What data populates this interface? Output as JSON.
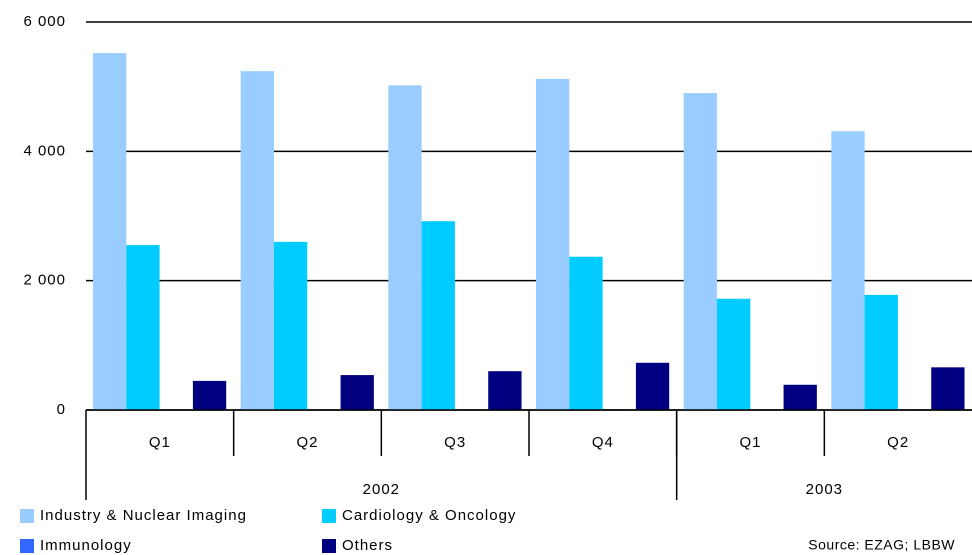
{
  "chart_data": {
    "type": "bar",
    "categories": [
      "Q1",
      "Q2",
      "Q3",
      "Q4",
      "Q1",
      "Q2"
    ],
    "groups": [
      {
        "label": "2002",
        "span": 4
      },
      {
        "label": "2003",
        "span": 2
      }
    ],
    "series": [
      {
        "name": "Industry & Nuclear Imaging",
        "color": "#99ccff",
        "values": [
          5520,
          5240,
          5020,
          5120,
          4900,
          4310
        ]
      },
      {
        "name": "Cardiology & Oncology",
        "color": "#00ccff",
        "values": [
          2550,
          2600,
          2920,
          2370,
          1720,
          1780
        ]
      },
      {
        "name": "Immunology",
        "color": "#3366ff",
        "values": [
          0,
          0,
          0,
          0,
          0,
          0
        ]
      },
      {
        "name": "Others",
        "color": "#000080",
        "values": [
          450,
          540,
          600,
          730,
          390,
          660
        ]
      }
    ],
    "ylim": [
      0,
      6000
    ],
    "yticks": [
      0,
      {
        "value": 2000,
        "label": "2 000"
      },
      {
        "value": 4000,
        "label": "4 000"
      },
      {
        "value": 6000,
        "label": "6 000"
      }
    ],
    "grid": true,
    "source": "Source: EZAG; LBBW"
  }
}
